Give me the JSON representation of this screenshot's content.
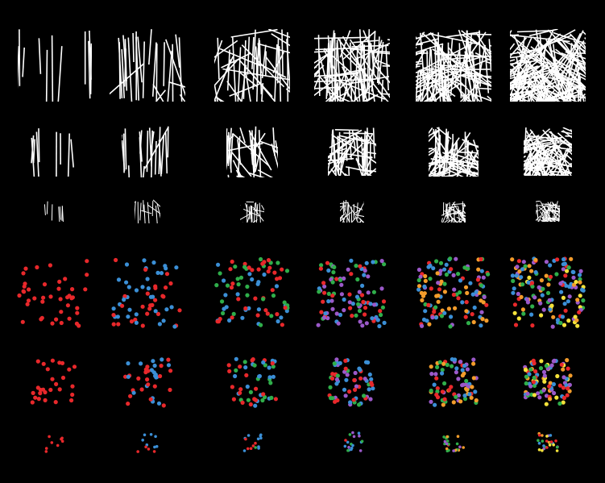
{
  "figure": {
    "background": "#000000",
    "line_color": "#ffffff",
    "dot_colors": [
      "#e8282b",
      "#3b8fd6",
      "#2fae4a",
      "#9b59c9",
      "#f39c2b",
      "#f4e23a"
    ],
    "columns": 6,
    "line_rows": [
      {
        "name": "line-row-large",
        "density_levels": [
          1,
          2,
          3,
          4,
          5,
          6
        ]
      },
      {
        "name": "line-row-medium",
        "density_levels": [
          1,
          2,
          3,
          4,
          5,
          6
        ]
      },
      {
        "name": "line-row-small",
        "density_levels": [
          1,
          2,
          3,
          4,
          5,
          6
        ]
      }
    ],
    "dot_rows": [
      {
        "name": "dot-row-large",
        "color_counts": [
          1,
          2,
          3,
          4,
          5,
          6
        ]
      },
      {
        "name": "dot-row-medium",
        "color_counts": [
          1,
          2,
          3,
          4,
          5,
          6
        ]
      },
      {
        "name": "dot-row-small",
        "color_counts": [
          1,
          2,
          3,
          4,
          5,
          6
        ]
      }
    ]
  }
}
